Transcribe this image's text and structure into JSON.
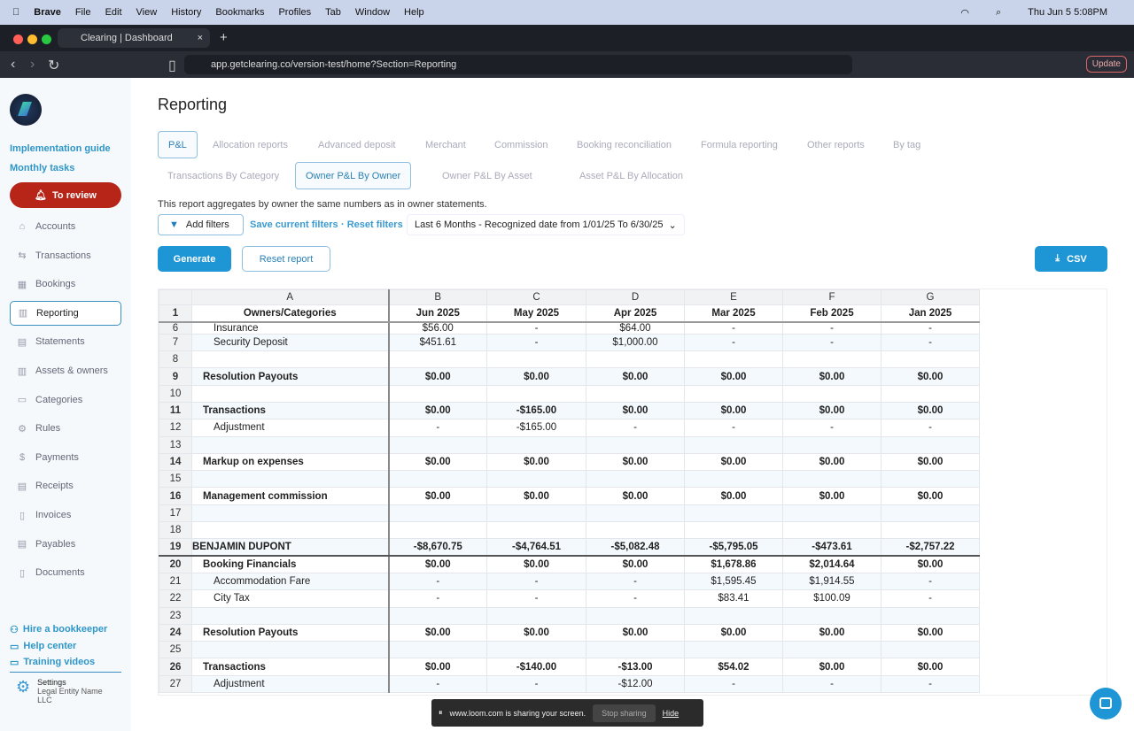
{
  "menubar": {
    "app": "Brave",
    "items": [
      "File",
      "Edit",
      "View",
      "History",
      "Bookmarks",
      "Profiles",
      "Tab",
      "Window",
      "Help"
    ],
    "datetime": "Thu Jun 5  5:08PM"
  },
  "browser": {
    "tab_title": "Clearing | Dashboard",
    "url": "app.getclearing.co/version-test/home?Section=Reporting",
    "update_label": "Update"
  },
  "sidebar": {
    "links": [
      "Implementation guide",
      "Monthly tasks"
    ],
    "review_label": "To review",
    "nav": [
      {
        "label": "Accounts",
        "icon": "bank-icon"
      },
      {
        "label": "Transactions",
        "icon": "swap-icon"
      },
      {
        "label": "Bookings",
        "icon": "calendar-icon"
      },
      {
        "label": "Reporting",
        "icon": "chart-icon",
        "active": true
      },
      {
        "label": "Statements",
        "icon": "statement-icon"
      },
      {
        "label": "Assets & owners",
        "icon": "building-icon"
      },
      {
        "label": "Categories",
        "icon": "folder-icon"
      },
      {
        "label": "Rules",
        "icon": "gear-icon"
      },
      {
        "label": "Payments",
        "icon": "dollar-icon"
      },
      {
        "label": "Receipts",
        "icon": "receipt-icon"
      },
      {
        "label": "Invoices",
        "icon": "invoice-icon"
      },
      {
        "label": "Payables",
        "icon": "payables-icon"
      },
      {
        "label": "Documents",
        "icon": "document-icon"
      }
    ],
    "footer": [
      "Hire a bookkeeper",
      "Help center",
      "Training videos"
    ],
    "settings": {
      "title": "Settings",
      "entity": "Legal Entity Name LLC"
    }
  },
  "main": {
    "title": "Reporting",
    "tabs_row1": [
      "P&L",
      "Allocation reports",
      "Advanced deposit",
      "Merchant",
      "Commission",
      "Booking reconciliation",
      "Formula reporting",
      "Other reports",
      "By tag"
    ],
    "tabs_row2": [
      "Transactions By Category",
      "Owner P&L By Owner",
      "Owner P&L By Asset",
      "Asset P&L By Allocation"
    ],
    "description": "This report aggregates by owner the same numbers as in owner statements.",
    "add_filters": "Add filters",
    "save_filters": "Save current filters",
    "reset_filters": "· Reset filters",
    "date_range": "Last 6 Months -   Recognized date from 1/01/25 To 6/30/25",
    "generate": "Generate",
    "reset_report": "Reset report",
    "csv": "CSV"
  },
  "sheet": {
    "columns": [
      "A",
      "B",
      "C",
      "D",
      "E",
      "F",
      "G"
    ],
    "header": [
      "Owners/Categories",
      "Jun 2025",
      "May 2025",
      "Apr 2025",
      "Mar 2025",
      "Feb 2025",
      "Jan 2025"
    ],
    "rows": [
      {
        "n": "6",
        "level": 2,
        "label": "Insurance",
        "v": [
          "$56.00",
          "-",
          "$64.00",
          "-",
          "-",
          "-"
        ]
      },
      {
        "n": "7",
        "level": 2,
        "label": "Security Deposit",
        "v": [
          "$451.61",
          "-",
          "$1,000.00",
          "-",
          "-",
          "-"
        ]
      },
      {
        "n": "8",
        "level": 2,
        "label": "",
        "v": [
          "",
          "",
          "",
          "",
          "",
          ""
        ]
      },
      {
        "n": "9",
        "level": 1,
        "label": "Resolution Payouts",
        "v": [
          "$0.00",
          "$0.00",
          "$0.00",
          "$0.00",
          "$0.00",
          "$0.00"
        ]
      },
      {
        "n": "10",
        "level": 2,
        "label": "",
        "v": [
          "",
          "",
          "",
          "",
          "",
          ""
        ]
      },
      {
        "n": "11",
        "level": 1,
        "label": "Transactions",
        "v": [
          "$0.00",
          "-$165.00",
          "$0.00",
          "$0.00",
          "$0.00",
          "$0.00"
        ]
      },
      {
        "n": "12",
        "level": 2,
        "label": "Adjustment",
        "v": [
          "-",
          "-$165.00",
          "-",
          "-",
          "-",
          "-"
        ]
      },
      {
        "n": "13",
        "level": 2,
        "label": "",
        "v": [
          "",
          "",
          "",
          "",
          "",
          ""
        ]
      },
      {
        "n": "14",
        "level": 1,
        "label": "Markup on expenses",
        "v": [
          "$0.00",
          "$0.00",
          "$0.00",
          "$0.00",
          "$0.00",
          "$0.00"
        ]
      },
      {
        "n": "15",
        "level": 2,
        "label": "",
        "v": [
          "",
          "",
          "",
          "",
          "",
          ""
        ]
      },
      {
        "n": "16",
        "level": 1,
        "label": "Management commission",
        "v": [
          "$0.00",
          "$0.00",
          "$0.00",
          "$0.00",
          "$0.00",
          "$0.00"
        ]
      },
      {
        "n": "17",
        "level": 2,
        "label": "",
        "v": [
          "",
          "",
          "",
          "",
          "",
          ""
        ]
      },
      {
        "n": "18",
        "level": 2,
        "label": "",
        "v": [
          "",
          "",
          "",
          "",
          "",
          ""
        ]
      },
      {
        "n": "19",
        "level": 0,
        "label": "BENJAMIN DUPONT",
        "v": [
          "-$8,670.75",
          "-$4,764.51",
          "-$5,082.48",
          "-$5,795.05",
          "-$473.61",
          "-$2,757.22"
        ]
      },
      {
        "n": "20",
        "level": 1,
        "label": "Booking Financials",
        "v": [
          "$0.00",
          "$0.00",
          "$0.00",
          "$1,678.86",
          "$2,014.64",
          "$0.00"
        ]
      },
      {
        "n": "21",
        "level": 2,
        "label": "Accommodation Fare",
        "v": [
          "-",
          "-",
          "-",
          "$1,595.45",
          "$1,914.55",
          "-"
        ]
      },
      {
        "n": "22",
        "level": 2,
        "label": "City Tax",
        "v": [
          "-",
          "-",
          "-",
          "$83.41",
          "$100.09",
          "-"
        ]
      },
      {
        "n": "23",
        "level": 2,
        "label": "",
        "v": [
          "",
          "",
          "",
          "",
          "",
          ""
        ]
      },
      {
        "n": "24",
        "level": 1,
        "label": "Resolution Payouts",
        "v": [
          "$0.00",
          "$0.00",
          "$0.00",
          "$0.00",
          "$0.00",
          "$0.00"
        ]
      },
      {
        "n": "25",
        "level": 2,
        "label": "",
        "v": [
          "",
          "",
          "",
          "",
          "",
          ""
        ]
      },
      {
        "n": "26",
        "level": 1,
        "label": "Transactions",
        "v": [
          "$0.00",
          "-$140.00",
          "-$13.00",
          "$54.02",
          "$0.00",
          "$0.00"
        ]
      },
      {
        "n": "27",
        "level": 2,
        "label": "Adjustment",
        "v": [
          "-",
          "-",
          "-$12.00",
          "-",
          "-",
          "-"
        ]
      }
    ]
  },
  "loom": {
    "message": "www.loom.com is sharing your screen.",
    "stop": "Stop sharing",
    "hide": "Hide"
  }
}
